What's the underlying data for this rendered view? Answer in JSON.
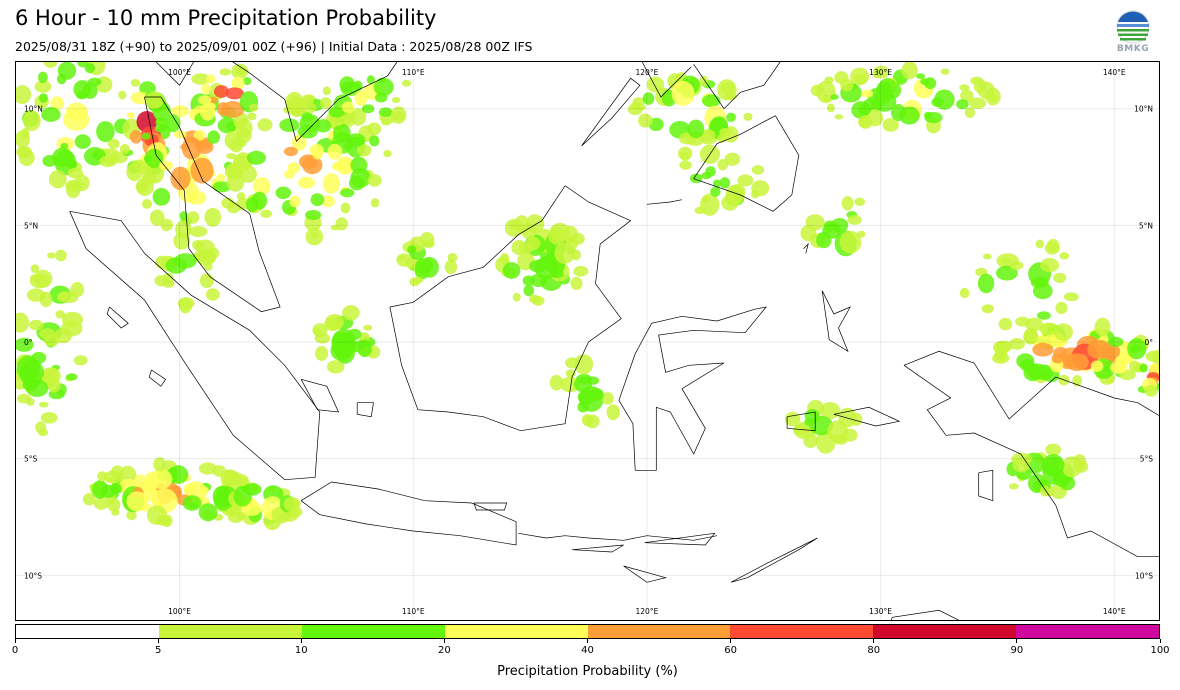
{
  "header": {
    "title": "6 Hour - 10 mm Precipitation Probability",
    "subtitle": "2025/08/31 18Z (+90) to 2025/09/01 00Z (+96) | Initial Data : 2025/08/28 00Z IFS",
    "logo_text": "BMKG"
  },
  "map": {
    "lon_range": [
      93,
      142
    ],
    "lat_range": [
      -12,
      12
    ],
    "lon_ticks": [
      {
        "value": 100,
        "label": "100°E"
      },
      {
        "value": 110,
        "label": "110°E"
      },
      {
        "value": 120,
        "label": "120°E"
      },
      {
        "value": 130,
        "label": "130°E"
      },
      {
        "value": 140,
        "label": "140°E"
      }
    ],
    "lat_ticks": [
      {
        "value": 10,
        "label": "10°N"
      },
      {
        "value": 5,
        "label": "5°N"
      },
      {
        "value": 0,
        "label": "0°"
      },
      {
        "value": -5,
        "label": "5°S"
      },
      {
        "value": -10,
        "label": "10°S"
      }
    ],
    "grid": true
  },
  "colorbar": {
    "label": "Precipitation Probability (%)",
    "ticks": [
      "0",
      "5",
      "10",
      "20",
      "40",
      "60",
      "80",
      "90",
      "100"
    ],
    "colors": [
      "#ffffff",
      "#c8f53a",
      "#63f50c",
      "#ffff5a",
      "#ff9e36",
      "#ff4a32",
      "#d2082d",
      "#d008a0"
    ]
  }
}
